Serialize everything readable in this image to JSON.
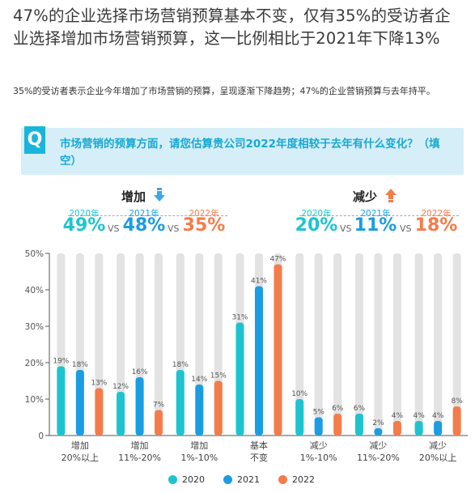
{
  "header": {
    "title": "47%的企业选择市场营销预算基本不变，仅有35%的受访者企业选择增加市场营销预算，这一比例相比于2021年下降13%",
    "subtitle": "35%的受访者表示企业今年增加了市场营销的预算，呈现逐渐下降趋势；47%的企业营销预算与去年持平。"
  },
  "question": {
    "badge": "Q",
    "text": "市场营销的预算方面，请您估算贵公司2022年度相较于去年有什么变化？（填空）"
  },
  "summary": {
    "vs": "VS",
    "increase": {
      "label": "增加",
      "icon": "arrow-down-icon",
      "years": [
        "2020年",
        "2021年",
        "2022年"
      ],
      "values": [
        "49%",
        "48%",
        "35%"
      ]
    },
    "decrease": {
      "label": "减少",
      "icon": "arrow-up-icon",
      "years": [
        "2020年",
        "2021年",
        "2022年"
      ],
      "values": [
        "20%",
        "11%",
        "18%"
      ]
    }
  },
  "colors": {
    "s2020": "#1dc4d0",
    "s2021": "#1a9de2",
    "s2022": "#f47c4a",
    "track": "#e3e3e3",
    "accent": "#19b5dc"
  },
  "chart_data": {
    "type": "bar",
    "title": "",
    "xlabel": "",
    "ylabel": "",
    "ylim": [
      0,
      50
    ],
    "yticks": [
      "0",
      "10%",
      "20%",
      "30%",
      "40%",
      "50%"
    ],
    "categories": [
      "增加\n20%以上",
      "增加\n11%-20%",
      "增加\n1%-10%",
      "基本\n不变",
      "减少\n1%-10%",
      "减少\n11%-20%",
      "减少\n20%以上"
    ],
    "series": [
      {
        "name": "2020",
        "values": [
          19,
          12,
          18,
          31,
          10,
          6,
          4
        ],
        "labels": [
          "19%",
          "12%",
          "18%",
          "31%",
          "10%",
          "6%",
          "4%"
        ]
      },
      {
        "name": "2021",
        "values": [
          18,
          16,
          14,
          41,
          5,
          2,
          4
        ],
        "labels": [
          "18%",
          "16%",
          "14%",
          "41%",
          "5%",
          "2%",
          "4%"
        ]
      },
      {
        "name": "2022",
        "values": [
          13,
          7,
          15,
          47,
          6,
          4,
          8
        ],
        "labels": [
          "13%",
          "7%",
          "15%",
          "47%",
          "6%",
          "4%",
          "8%"
        ]
      }
    ],
    "legend_position": "bottom",
    "grid": false
  }
}
